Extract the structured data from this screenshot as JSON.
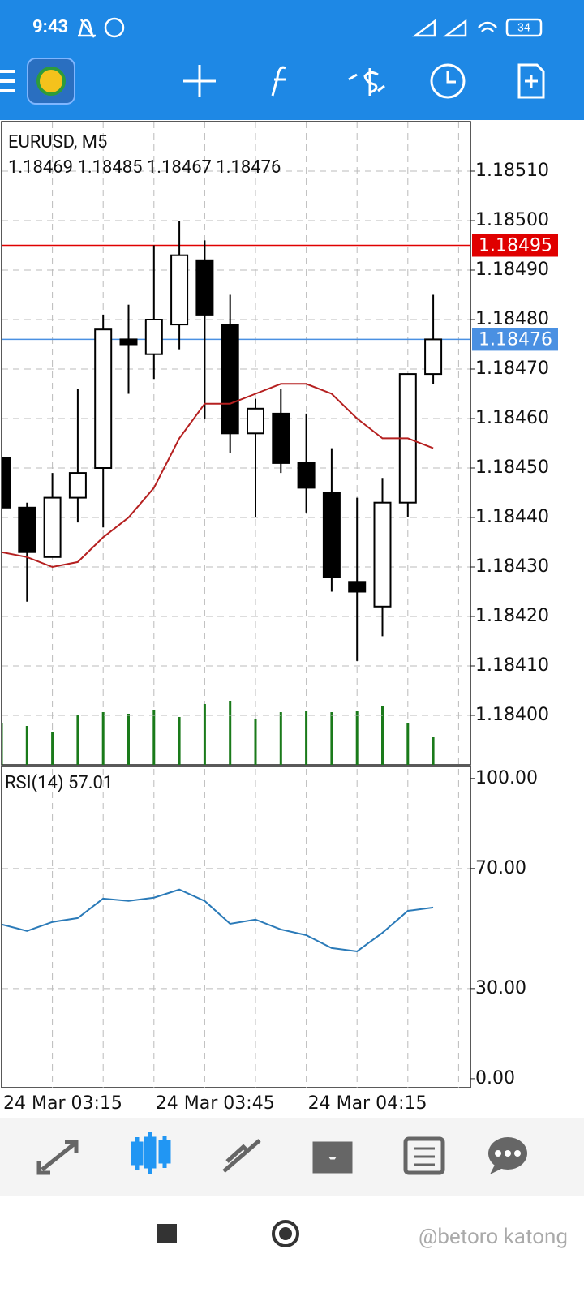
{
  "status_bar": {
    "time": "9:43",
    "battery": "34"
  },
  "chart_data": [
    {
      "type": "candlestick",
      "symbol": "EURUSD, M5",
      "categories": [
        "24 Mar 03:15",
        null,
        null,
        null,
        null,
        null,
        "24 Mar 03:45",
        null,
        null,
        null,
        null,
        null,
        "24 Mar 04:15",
        null,
        null,
        null,
        null,
        null
      ],
      "open": [
        1.18452,
        1.18442,
        1.18432,
        1.18444,
        1.1845,
        1.18476,
        1.18473,
        1.18479,
        1.18492,
        1.18479,
        1.18457,
        1.18461,
        1.18451,
        1.18445,
        1.18427,
        1.18422,
        1.18443,
        1.18469
      ],
      "high": [
        1.1846,
        1.18443,
        1.18449,
        1.18466,
        1.18481,
        1.18483,
        1.18495,
        1.185,
        1.18496,
        1.18485,
        1.18464,
        1.18466,
        1.18461,
        1.18454,
        1.18444,
        1.18448,
        1.18469,
        1.18485
      ],
      "low": [
        1.18437,
        1.18423,
        1.18432,
        1.18439,
        1.18438,
        1.18465,
        1.18468,
        1.18474,
        1.1846,
        1.18453,
        1.1844,
        1.18449,
        1.18441,
        1.18425,
        1.18411,
        1.18416,
        1.1844,
        1.18467
      ],
      "close": [
        1.18442,
        1.18433,
        1.18444,
        1.18449,
        1.18478,
        1.18475,
        1.1848,
        1.18493,
        1.18481,
        1.18457,
        1.18462,
        1.18451,
        1.18446,
        1.18428,
        1.18425,
        1.18443,
        1.18469,
        1.18476
      ],
      "up_color": "#ffffff",
      "down_color": "#000000",
      "ma": {
        "color": "#b52020",
        "values": [
          1.18433,
          1.18432,
          1.1843,
          1.18431,
          1.18436,
          1.1844,
          1.18446,
          1.18456,
          1.18463,
          1.18463,
          1.18465,
          1.18467,
          1.18467,
          1.18465,
          1.1846,
          1.18456,
          1.18456,
          1.18454
        ]
      },
      "volume": {
        "color": "#1a7a1a",
        "values": [
          51,
          48,
          40,
          62,
          65,
          63,
          68,
          59,
          75,
          79,
          56,
          65,
          66,
          65,
          67,
          73,
          52,
          34
        ]
      },
      "price_lines": [
        {
          "value": 1.18495,
          "color": "#e00000"
        },
        {
          "value": 1.18476,
          "color": "#4a90e2"
        }
      ],
      "ylim": [
        1.1839,
        1.1852
      ],
      "yticks": [
        {
          "value": 1.1851,
          "label": "1.18510"
        },
        {
          "value": 1.185,
          "label": "1.18500"
        },
        {
          "value": 1.1849,
          "label": "1.18490"
        },
        {
          "value": 1.1848,
          "label": "1.18480"
        },
        {
          "value": 1.1847,
          "label": "1.18470"
        },
        {
          "value": 1.1846,
          "label": "1.18460"
        },
        {
          "value": 1.1845,
          "label": "1.18450"
        },
        {
          "value": 1.1844,
          "label": "1.18440"
        },
        {
          "value": 1.1843,
          "label": "1.18430"
        },
        {
          "value": 1.1842,
          "label": "1.18420"
        },
        {
          "value": 1.1841,
          "label": "1.18410"
        },
        {
          "value": 1.184,
          "label": "1.18400"
        }
      ],
      "grid": true
    },
    {
      "type": "line",
      "title": "RSI(14)",
      "color": "#2a7ab8",
      "values": [
        51.4,
        49.2,
        52.2,
        53.5,
        60.0,
        59.2,
        60.3,
        63.0,
        59.2,
        51.6,
        53.0,
        49.7,
        47.8,
        43.5,
        42.4,
        48.6,
        55.9,
        57.01
      ],
      "ylim": [
        -3,
        104
      ],
      "yticks": [
        {
          "value": 100,
          "label": "100.00"
        },
        {
          "value": 70,
          "label": "70.00"
        },
        {
          "value": 30,
          "label": "30.00"
        },
        {
          "value": 0,
          "label": "0.00"
        }
      ],
      "grid": true
    }
  ],
  "watermark": "@betoro katong"
}
